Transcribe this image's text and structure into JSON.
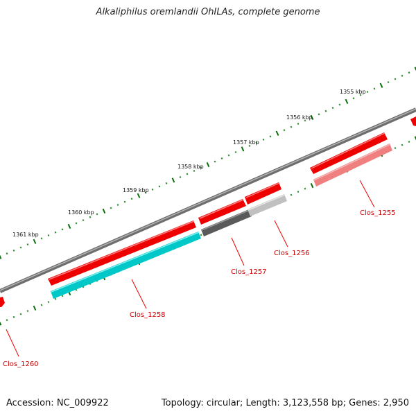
{
  "header": {
    "title": "Alkaliphilus oremlandii OhILAs, complete genome"
  },
  "footer": {
    "accession": "Accession: NC_009922",
    "summary": "Topology: circular; Length: 3,123,558 bp; Genes: 2,950"
  },
  "ticks": [
    {
      "label": "1355 kbp"
    },
    {
      "label": "1356 kbp"
    },
    {
      "label": "1357 kbp"
    },
    {
      "label": "1358 kbp"
    },
    {
      "label": "1359 kbp"
    },
    {
      "label": "1360 kbp"
    },
    {
      "label": "1361 kbp"
    }
  ],
  "genes": [
    {
      "label": "Clos_1255"
    },
    {
      "label": "Clos_1256"
    },
    {
      "label": "Clos_1257"
    },
    {
      "label": "Clos_1258"
    },
    {
      "label": "Clos_1260"
    }
  ],
  "colors": {
    "backbone": "#808080",
    "cds_forward": "#ff0000",
    "cds_1255": "#f08080",
    "cds_1256": "#c8c8c8",
    "cds_1257": "#606060",
    "cds_1258": "#00cccc",
    "tick_major": "#006400",
    "tick_minor": "#228b22",
    "label": "#cc0000"
  }
}
